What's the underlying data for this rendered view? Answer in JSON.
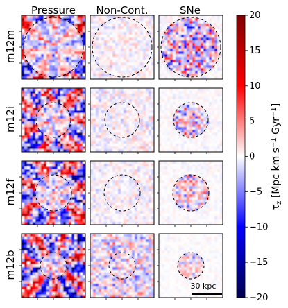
{
  "chart_data": {
    "type": "heatmap",
    "columns": [
      "Pressure",
      "Non-Cont.",
      "SNe"
    ],
    "rows": [
      "m12m",
      "m12i",
      "m12f",
      "m12b"
    ],
    "colorbar": {
      "label": "τ_z [Mpc km s⁻¹ Gyr⁻¹]",
      "label_main": "τ",
      "label_sub": "z",
      "label_unit": " [Mpc km s",
      "label_exp1": "−1",
      "label_mid": " Gyr",
      "label_exp2": "−1",
      "label_end": "]",
      "range": [
        -20,
        20
      ],
      "ticks": [
        -20,
        -15,
        -10,
        -5,
        0,
        5,
        10,
        15,
        20
      ],
      "tick_labels": [
        "−20",
        "−15",
        "−10",
        "−5",
        "0",
        "5",
        "10",
        "15",
        "20"
      ],
      "colormap": "seismic",
      "colors": {
        "low": "#00004c",
        "mid_low": "#0000ff",
        "zero": "#ffffff",
        "mid_high": "#ff0000",
        "high": "#800000"
      }
    },
    "scale_bar": {
      "label": "30 kpc"
    },
    "circles": "dashed circle in every panel",
    "panel_intensity": [
      [
        1.0,
        0.22,
        0.6
      ],
      [
        0.95,
        0.25,
        0.45
      ],
      [
        0.95,
        0.22,
        0.4
      ],
      [
        1.0,
        0.55,
        0.3
      ]
    ]
  }
}
